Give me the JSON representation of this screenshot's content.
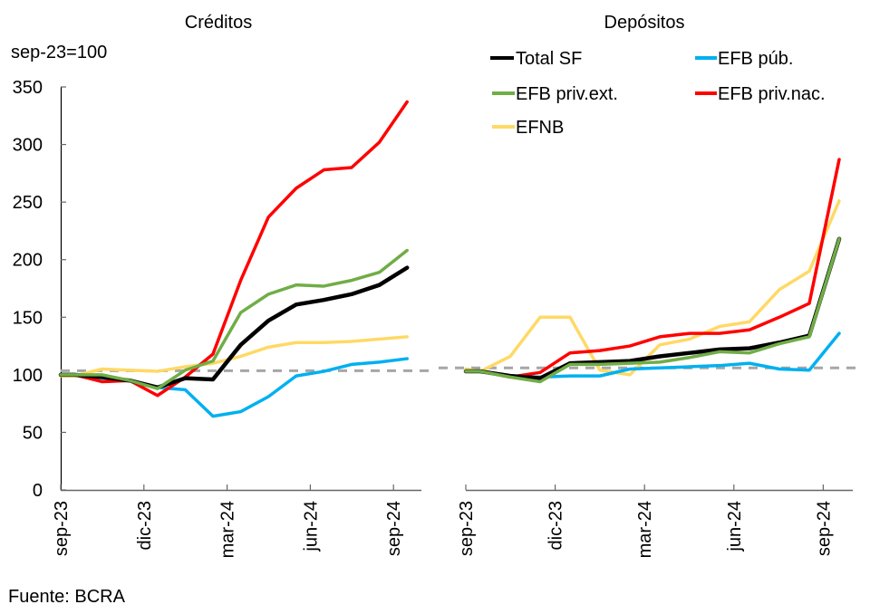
{
  "chart_data": [
    {
      "type": "line",
      "title": "Créditos",
      "ylabel": "sep-23=100",
      "xlabel": "",
      "ylim": [
        0,
        350
      ],
      "yticks": [
        0,
        50,
        100,
        150,
        200,
        250,
        300,
        350
      ],
      "xtick_labels": [
        "sep-23",
        "dic-23",
        "mar-24",
        "jun-24",
        "sep-24"
      ],
      "x": [
        "sep-23",
        "sep-23",
        "oct-23",
        "nov-23",
        "dic-23",
        "ene-24",
        "feb-24",
        "mar-24",
        "abr-24",
        "may-24",
        "jun-24",
        "jul-24",
        "ago-24",
        "sep-24"
      ],
      "reference_line": 103.5,
      "series": [
        {
          "name": "Total SF",
          "color": "#000000",
          "values": [
            100,
            100,
            98,
            95,
            89,
            97,
            96,
            126,
            147,
            161,
            165,
            170,
            178,
            193
          ]
        },
        {
          "name": "EFB púb.",
          "color": "#00B0F0",
          "values": [
            100,
            100,
            97,
            95,
            89,
            87,
            64,
            68,
            81,
            99,
            103,
            109,
            111,
            114
          ]
        },
        {
          "name": "EFB priv.ext.",
          "color": "#70AD47",
          "values": [
            100,
            100,
            100,
            95,
            88,
            104,
            112,
            154,
            170,
            178,
            177,
            182,
            189,
            208
          ]
        },
        {
          "name": "EFB priv.nac.",
          "color": "#FF0000",
          "values": [
            100,
            100,
            94,
            95,
            82,
            98,
            118,
            182,
            237,
            262,
            278,
            280,
            302,
            337
          ]
        },
        {
          "name": "EFNB",
          "color": "#FFD966",
          "values": [
            99,
            99,
            105,
            104,
            103,
            107,
            110,
            116,
            124,
            128,
            128,
            129,
            131,
            133
          ]
        }
      ]
    },
    {
      "type": "line",
      "title": "Depósitos",
      "xlabel": "",
      "ylabel": "",
      "ylim": [
        0,
        350
      ],
      "xtick_labels": [
        "sep-23",
        "dic-23",
        "mar-24",
        "jun-24",
        "sep-24"
      ],
      "x": [
        "sep-23",
        "sep-23",
        "oct-23",
        "nov-23",
        "dic-23",
        "ene-24",
        "feb-24",
        "mar-24",
        "abr-24",
        "may-24",
        "jun-24",
        "jul-24",
        "ago-24",
        "sep-24"
      ],
      "reference_line": 106,
      "series": [
        {
          "name": "Total SF",
          "color": "#000000",
          "values": [
            103,
            103,
            99,
            97,
            110,
            111,
            112,
            116,
            119,
            122,
            123,
            128,
            134,
            218
          ]
        },
        {
          "name": "EFB púb.",
          "color": "#00B0F0",
          "values": [
            103,
            103,
            99,
            98,
            99,
            99,
            105,
            106,
            107,
            108,
            110,
            105,
            104,
            136
          ]
        },
        {
          "name": "EFB priv.ext.",
          "color": "#70AD47",
          "values": [
            103,
            103,
            98,
            94,
            109,
            109,
            110,
            111,
            115,
            120,
            119,
            127,
            133,
            218
          ]
        },
        {
          "name": "EFB priv.nac.",
          "color": "#FF0000",
          "values": [
            103,
            103,
            98,
            102,
            119,
            121,
            125,
            133,
            136,
            136,
            139,
            150,
            162,
            287
          ]
        },
        {
          "name": "EFNB",
          "color": "#FFD966",
          "values": [
            105,
            103,
            116,
            150,
            150,
            104,
            100,
            126,
            131,
            142,
            146,
            174,
            190,
            251
          ]
        }
      ]
    }
  ],
  "legend": {
    "placement": "top-right",
    "items": [
      {
        "label": "Total SF",
        "color": "#000000"
      },
      {
        "label": "EFB púb.",
        "color": "#00B0F0"
      },
      {
        "label": "EFB priv.ext.",
        "color": "#70AD47"
      },
      {
        "label": "EFB priv.nac.",
        "color": "#FF0000"
      },
      {
        "label": "EFNB",
        "color": "#FFD966"
      }
    ]
  },
  "source_note": "Fuente: BCRA",
  "reference_line_color": "#A6A6A6"
}
